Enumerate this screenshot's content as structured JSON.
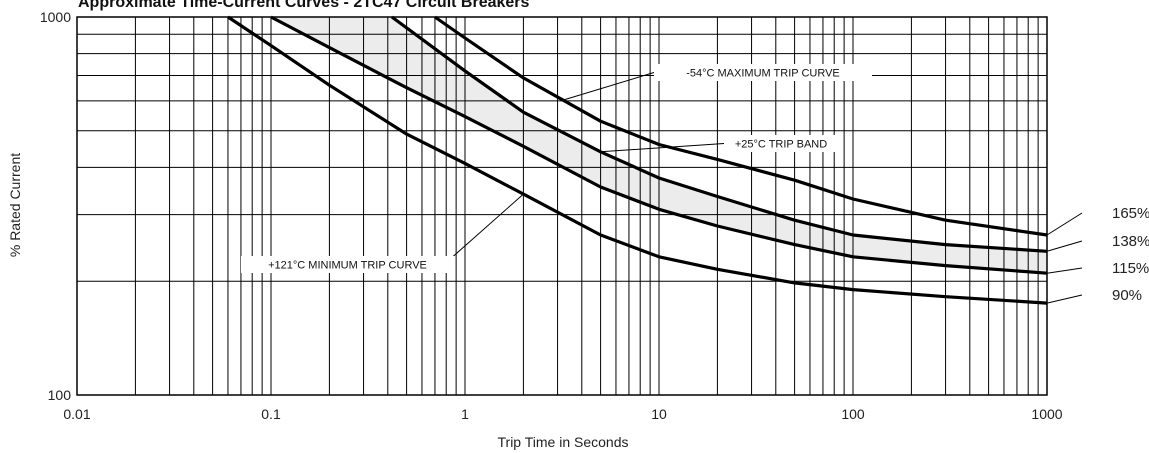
{
  "chart_data": {
    "type": "line",
    "title": "Approximate Time-Current Curves - 2TC47 Circuit Breakers",
    "xlabel": "Trip Time in Seconds",
    "ylabel": "% Rated Current",
    "x_scale": "log",
    "y_scale": "log",
    "xlim": [
      0.01,
      1000
    ],
    "ylim": [
      100,
      1000
    ],
    "x_ticks": [
      {
        "value": 0.01,
        "label": "0.01"
      },
      {
        "value": 0.1,
        "label": "0.1"
      },
      {
        "value": 1,
        "label": "1"
      },
      {
        "value": 10,
        "label": "10"
      },
      {
        "value": 100,
        "label": "100"
      },
      {
        "value": 1000,
        "label": "1000"
      }
    ],
    "y_ticks": [
      {
        "value": 100,
        "label": "100"
      },
      {
        "value": 1000,
        "label": "1000"
      }
    ],
    "grid": true,
    "series": [
      {
        "name": "165%",
        "x": [
          0.7,
          1.0,
          2.0,
          5.0,
          10,
          20,
          50,
          100,
          300,
          1000
        ],
        "y": [
          1000,
          880,
          690,
          530,
          460,
          420,
          370,
          330,
          290,
          265
        ]
      },
      {
        "name": "138%",
        "x": [
          0.42,
          1.0,
          2.0,
          5.0,
          10,
          20,
          50,
          100,
          300,
          1000
        ],
        "y": [
          1000,
          720,
          560,
          440,
          375,
          335,
          290,
          265,
          250,
          240
        ]
      },
      {
        "name": "115%",
        "x": [
          0.1,
          0.2,
          0.5,
          1.0,
          2.0,
          5.0,
          10,
          20,
          50,
          100,
          300,
          1000
        ],
        "y": [
          1000,
          830,
          650,
          545,
          455,
          355,
          310,
          280,
          250,
          232,
          220,
          210
        ]
      },
      {
        "name": "90%",
        "x": [
          0.06,
          0.1,
          0.2,
          0.5,
          1.0,
          2.0,
          5.0,
          10,
          20,
          50,
          100,
          300,
          1000
        ],
        "y": [
          1000,
          840,
          660,
          490,
          410,
          340,
          265,
          232,
          215,
          198,
          190,
          182,
          175
        ]
      }
    ],
    "bands": [
      {
        "label": "+25°C TRIP BAND",
        "upper_series": "138%",
        "lower_series": "115%",
        "color": "#ececec"
      }
    ],
    "annotations": [
      {
        "text": "-54°C MAXIMUM TRIP CURVE",
        "points_to_series": "165%"
      },
      {
        "text": "+25°C TRIP BAND",
        "points_to_series": "138%"
      },
      {
        "text": "+121°C MINIMUM TRIP CURVE",
        "points_to_series": "90%"
      }
    ],
    "colors": {
      "curve": "#000000",
      "grid": "#000000",
      "band": "#ececec"
    }
  }
}
